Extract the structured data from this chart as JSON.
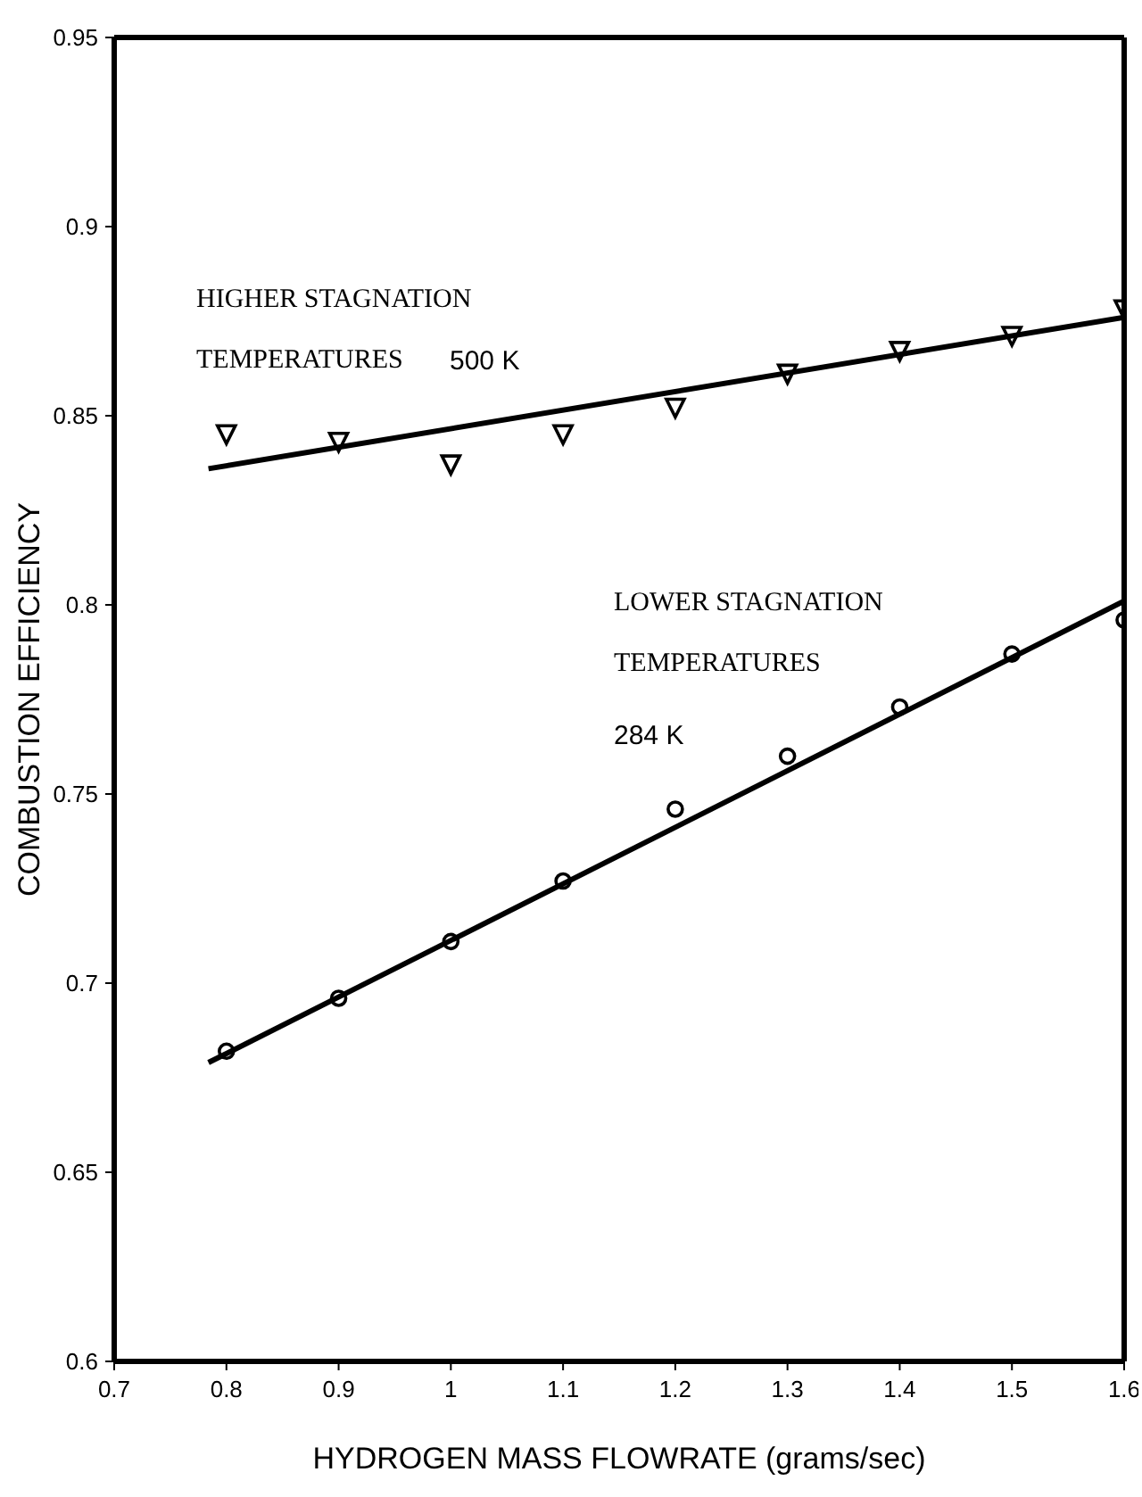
{
  "chart_data": {
    "type": "scatter",
    "xlabel": "HYDROGEN MASS FLOWRATE  (grams/sec)",
    "ylabel": "COMBUSTION  EFFICIENCY",
    "xlim": [
      0.7,
      1.6
    ],
    "xticks": [
      0.7,
      0.8,
      0.9,
      1,
      1.1,
      1.2,
      1.3,
      1.4,
      1.5,
      1.6
    ],
    "ylim": [
      0.6,
      0.95
    ],
    "yticks": [
      0.6,
      0.65,
      0.7,
      0.75,
      0.8,
      0.85,
      0.9,
      0.95
    ],
    "series": [
      {
        "marker": "triangle",
        "color": "#000000",
        "x": [
          0.8,
          0.9,
          1,
          1.1,
          1.2,
          1.3,
          1.4,
          1.5,
          1.6
        ],
        "values": [
          0.845,
          0.843,
          0.837,
          0.845,
          0.852,
          0.861,
          0.867,
          0.871,
          0.878
        ]
      },
      {
        "marker": "circle",
        "color": "#000000",
        "x": [
          0.8,
          0.9,
          1,
          1.1,
          1.2,
          1.3,
          1.4,
          1.5,
          1.6
        ],
        "values": [
          0.682,
          0.696,
          0.711,
          0.727,
          0.746,
          0.76,
          0.773,
          0.787,
          0.796
        ]
      },
      {
        "type": "line",
        "marker": "none",
        "color": "#000000",
        "x": [
          0.784,
          1.6
        ],
        "values": [
          0.836,
          0.876
        ]
      },
      {
        "type": "line",
        "marker": "none",
        "color": "#000000",
        "x": [
          0.784,
          1.6
        ],
        "values": [
          0.679,
          0.801
        ]
      }
    ],
    "annotations": [
      "HIGHER STAGNATION",
      "TEMPERATURES",
      "500 K",
      "LOWER STAGNATION",
      "TEMPERATURES",
      "284 K"
    ]
  }
}
